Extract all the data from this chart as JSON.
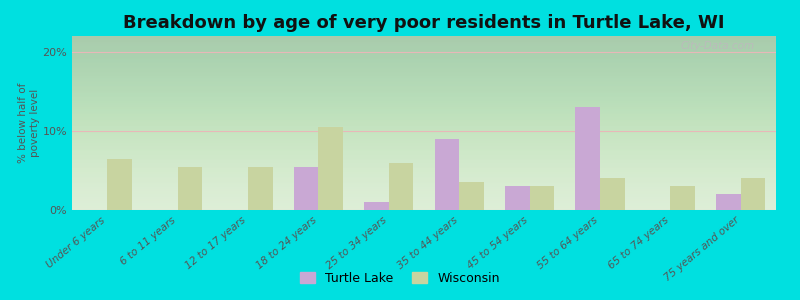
{
  "title": "Breakdown by age of very poor residents in Turtle Lake, WI",
  "ylabel": "% below half of\npoverty level",
  "categories": [
    "Under 6 years",
    "6 to 11 years",
    "12 to 17 years",
    "18 to 24 years",
    "25 to 34 years",
    "35 to 44 years",
    "45 to 54 years",
    "55 to 64 years",
    "65 to 74 years",
    "75 years and over"
  ],
  "turtle_lake": [
    0,
    0,
    0,
    5.5,
    1.0,
    9.0,
    3.0,
    13.0,
    0,
    2.0
  ],
  "wisconsin": [
    6.5,
    5.5,
    5.5,
    10.5,
    6.0,
    3.5,
    3.0,
    4.0,
    3.0,
    4.0
  ],
  "turtle_lake_color": "#c9a8d4",
  "wisconsin_color": "#c8d4a0",
  "background_outer": "#00e0e0",
  "ylim": [
    0,
    22
  ],
  "yticks": [
    0,
    10,
    20
  ],
  "ytick_labels": [
    "0%",
    "10%",
    "20%"
  ],
  "bar_width": 0.35,
  "title_fontsize": 13,
  "label_fontsize": 7.5,
  "watermark": "City-Data.com",
  "grid_color": "#e8b8b8",
  "plot_bg_top": "#ffffff",
  "plot_bg_bottom": "#dde8cc"
}
